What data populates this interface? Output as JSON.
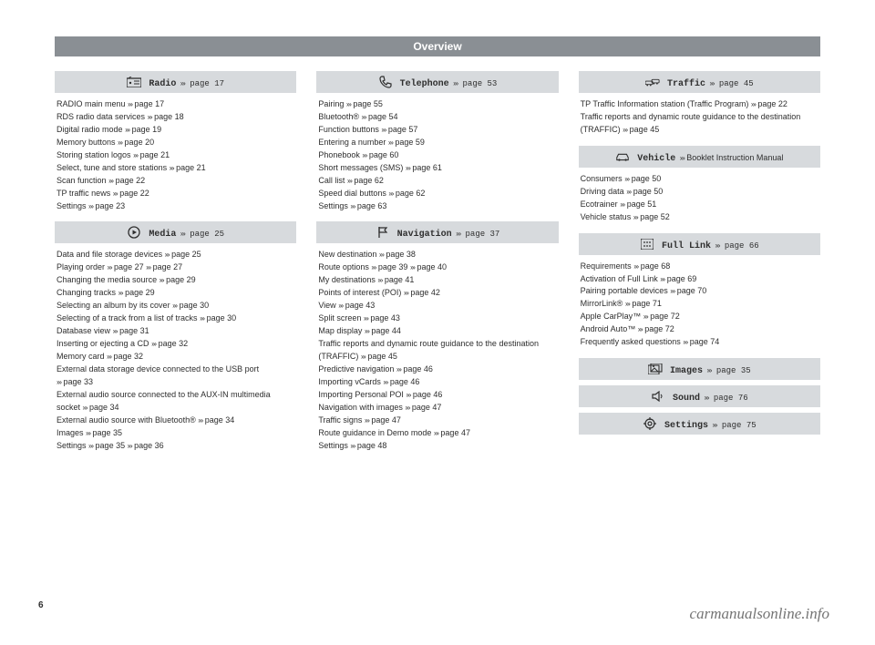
{
  "page_title": "Overview",
  "page_number": "6",
  "watermark": "carmanualsonline.info",
  "arrows_glyph": "›››",
  "sections": {
    "radio": {
      "icon": "radio-icon",
      "label": "Radio",
      "ref": "page 17",
      "items": [
        {
          "t": "RADIO main menu",
          "r": [
            "page 17"
          ]
        },
        {
          "t": "RDS radio data services",
          "r": [
            "page 18"
          ]
        },
        {
          "t": "Digital radio mode",
          "r": [
            "page 19"
          ]
        },
        {
          "t": "Memory buttons",
          "r": [
            "page 20"
          ]
        },
        {
          "t": "Storing station logos",
          "r": [
            "page 21"
          ]
        },
        {
          "t": "Select, tune and store stations",
          "r": [
            "page 21"
          ]
        },
        {
          "t": "Scan function",
          "r": [
            "page 22"
          ]
        },
        {
          "t": "TP traffic news",
          "r": [
            "page 22"
          ]
        },
        {
          "t": "Settings",
          "r": [
            "page 23"
          ]
        }
      ]
    },
    "media": {
      "icon": "media-icon",
      "label": "Media",
      "ref": "page 25",
      "items": [
        {
          "t": "Data and file storage devices",
          "r": [
            "page 25"
          ]
        },
        {
          "t": "Playing order",
          "r": [
            "page 27",
            "page 27"
          ]
        },
        {
          "t": "Changing the media source",
          "r": [
            "page 29"
          ]
        },
        {
          "t": "Changing tracks",
          "r": [
            "page 29"
          ]
        },
        {
          "t": "Selecting an album by its cover",
          "r": [
            "page 30"
          ]
        },
        {
          "t": "Selecting of a track from a list of tracks",
          "r": [
            "page 30"
          ]
        },
        {
          "t": "Database view",
          "r": [
            "page 31"
          ]
        },
        {
          "t": "Inserting or ejecting a CD",
          "r": [
            "page 32"
          ]
        },
        {
          "t": "Memory card",
          "r": [
            "page 32"
          ]
        },
        {
          "t": "External data storage device connected to the USB port",
          "r": [
            "page 33"
          ]
        },
        {
          "t": "External audio source connected to the AUX-IN multimedia socket",
          "r": [
            "page 34"
          ]
        },
        {
          "t": "External audio source with Bluetooth®",
          "r": [
            "page 34"
          ]
        },
        {
          "t": "Images",
          "r": [
            "page 35"
          ]
        },
        {
          "t": "Settings",
          "r": [
            "page 35",
            "page 36"
          ]
        }
      ]
    },
    "telephone": {
      "icon": "phone-icon",
      "label": "Telephone",
      "ref": "page 53",
      "items": [
        {
          "t": "Pairing",
          "r": [
            "page 55"
          ]
        },
        {
          "t": "Bluetooth®",
          "r": [
            "page 54"
          ]
        },
        {
          "t": "Function buttons",
          "r": [
            "page 57"
          ]
        },
        {
          "t": "Entering a number",
          "r": [
            "page 59"
          ]
        },
        {
          "t": "Phonebook",
          "r": [
            "page 60"
          ]
        },
        {
          "t": "Short messages (SMS)",
          "r": [
            "page 61"
          ]
        },
        {
          "t": "Call list",
          "r": [
            "page 62"
          ]
        },
        {
          "t": "Speed dial buttons",
          "r": [
            "page 62"
          ]
        },
        {
          "t": "Settings",
          "r": [
            "page 63"
          ]
        }
      ]
    },
    "navigation": {
      "icon": "flag-icon",
      "label": "Navigation",
      "ref": "page 37",
      "items": [
        {
          "t": "New destination",
          "r": [
            "page 38"
          ]
        },
        {
          "t": "Route options",
          "r": [
            "page 39",
            "page 40"
          ]
        },
        {
          "t": "My destinations",
          "r": [
            "page 41"
          ]
        },
        {
          "t": "Points of interest (POI)",
          "r": [
            "page 42"
          ]
        },
        {
          "t": "View",
          "r": [
            "page 43"
          ]
        },
        {
          "t": "Split screen",
          "r": [
            "page 43"
          ]
        },
        {
          "t": "Map display",
          "r": [
            "page 44"
          ]
        },
        {
          "t": "Traffic reports and dynamic route guidance to the destination (TRAFFIC)",
          "r": [
            "page 45"
          ]
        },
        {
          "t": "Predictive navigation",
          "r": [
            "page 46"
          ]
        },
        {
          "t": "Importing vCards",
          "r": [
            "page 46"
          ]
        },
        {
          "t": "Importing Personal POI",
          "r": [
            "page 46"
          ]
        },
        {
          "t": "Navigation with images",
          "r": [
            "page 47"
          ]
        },
        {
          "t": "Traffic signs",
          "r": [
            "page 47"
          ]
        },
        {
          "t": "Route guidance in Demo mode",
          "r": [
            "page 47"
          ]
        },
        {
          "t": "Settings",
          "r": [
            "page 48"
          ]
        }
      ]
    },
    "traffic": {
      "icon": "traffic-icon",
      "label": "Traffic",
      "ref": "page 45",
      "items": [
        {
          "t": "TP Traffic Information station (Traffic Program)",
          "r": [
            "page 22"
          ]
        },
        {
          "t": "Traffic reports and dynamic route guidance to the destination (TRAFFIC)",
          "r": [
            "page 45"
          ]
        }
      ]
    },
    "vehicle": {
      "icon": "car-icon",
      "label": "Vehicle",
      "ref_booklet": "Booklet Instruction Manual",
      "items": [
        {
          "t": "Consumers",
          "r": [
            "page 50"
          ]
        },
        {
          "t": "Driving data",
          "r": [
            "page 50"
          ]
        },
        {
          "t": "Ecotrainer",
          "r": [
            "page 51"
          ]
        },
        {
          "t": "Vehicle status",
          "r": [
            "page 52"
          ]
        }
      ]
    },
    "fulllink": {
      "icon": "grid-icon",
      "label": "Full Link",
      "ref": "page 66",
      "items": [
        {
          "t": "Requirements",
          "r": [
            "page 68"
          ]
        },
        {
          "t": "Activation of Full Link",
          "r": [
            "page 69"
          ]
        },
        {
          "t": "Pairing portable devices",
          "r": [
            "page 70"
          ]
        },
        {
          "t": "MirrorLink®",
          "r": [
            "page 71"
          ]
        },
        {
          "t": "Apple CarPlay™",
          "r": [
            "page 72"
          ]
        },
        {
          "t": "Android Auto™",
          "r": [
            "page 72"
          ]
        },
        {
          "t": "Frequently asked questions",
          "r": [
            "page 74"
          ]
        }
      ]
    },
    "images": {
      "icon": "images-icon",
      "label": "Images",
      "ref": "page 35"
    },
    "sound": {
      "icon": "sound-icon",
      "label": "Sound",
      "ref": "page 76"
    },
    "settings": {
      "icon": "gear-icon",
      "label": "Settings",
      "ref": "page 75"
    }
  }
}
